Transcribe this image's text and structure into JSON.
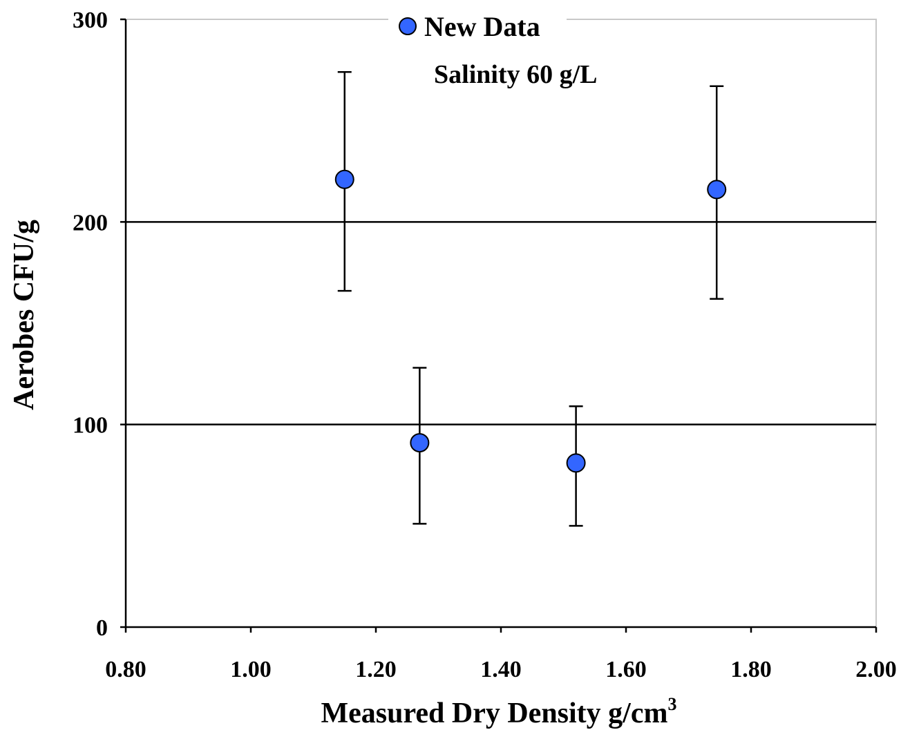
{
  "chart_data": {
    "type": "scatter",
    "title": "",
    "annotation": "Salinity 60 g/L",
    "xlabel": "Measured Dry Density g/cm",
    "xlabel_superscript": "3",
    "ylabel": "Aerobes CFU/g",
    "xlim": [
      0.8,
      2.0
    ],
    "ylim": [
      0,
      300
    ],
    "x_ticks": [
      "0.80",
      "1.00",
      "1.20",
      "1.40",
      "1.60",
      "1.80",
      "2.00"
    ],
    "y_ticks": [
      "0",
      "100",
      "200",
      "300"
    ],
    "grid": "horizontal",
    "legend_position": "top-center",
    "series": [
      {
        "name": "New Data",
        "color": "#3366ff",
        "points": [
          {
            "x": 1.15,
            "y": 221,
            "err_low": 166,
            "err_high": 274
          },
          {
            "x": 1.27,
            "y": 91,
            "err_low": 51,
            "err_high": 128
          },
          {
            "x": 1.52,
            "y": 81,
            "err_low": 50,
            "err_high": 109
          },
          {
            "x": 1.745,
            "y": 216,
            "err_low": 162,
            "err_high": 267
          }
        ]
      }
    ]
  }
}
